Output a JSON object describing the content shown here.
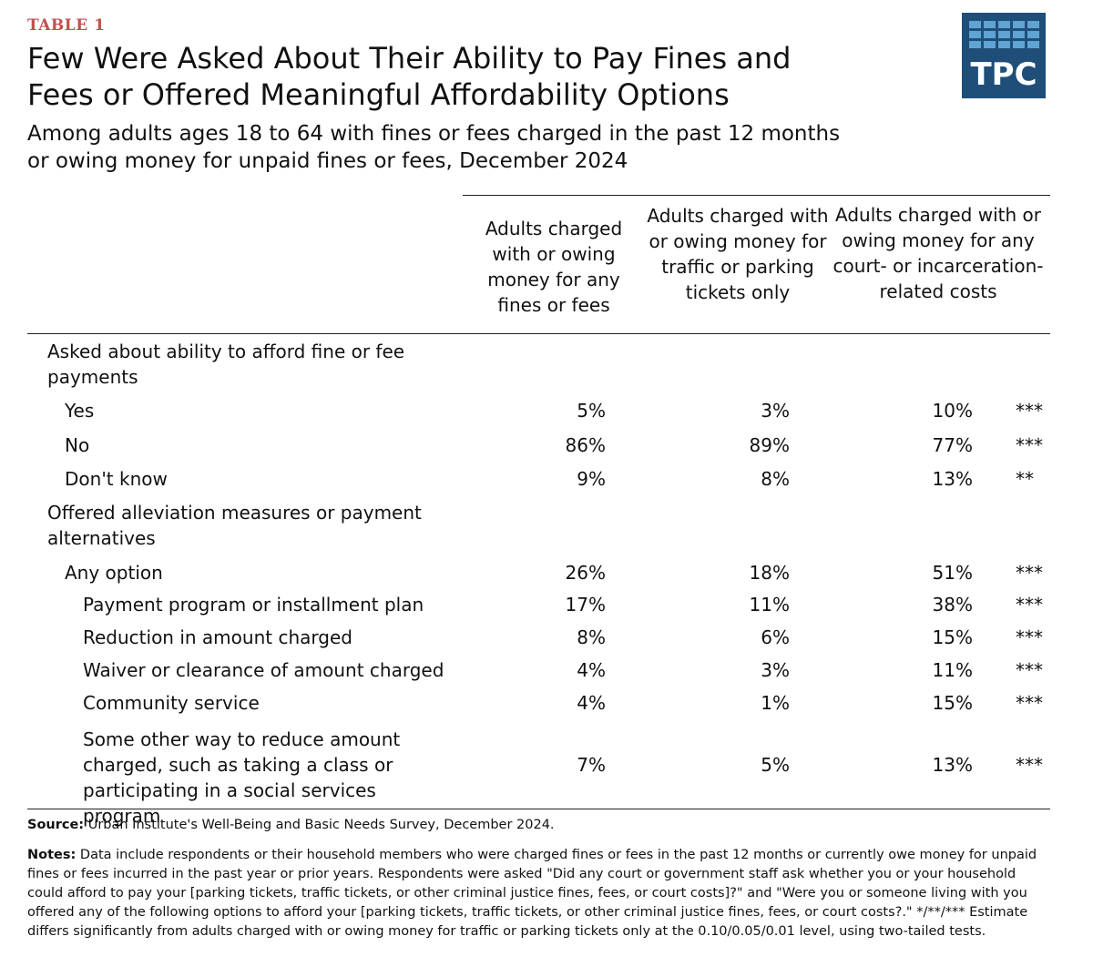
{
  "header": {
    "kicker": "TABLE 1",
    "title": "Few Were Asked About Their Ability to Pay Fines and Fees or Offered Meaningful Affordability Options",
    "subtitle": "Among adults ages 18 to 64 with fines or fees charged in the past 12 months or owing money for unpaid fines or fees, December 2024",
    "logo_text": "TPC",
    "kicker_color": "#c0504d",
    "logo_color": "#1f4e79"
  },
  "table": {
    "columns": [
      "Adults charged with or owing money for any fines or fees",
      "Adults charged with or owing money for traffic or parking tickets only",
      "Adults charged with or owing money for any court- or incarceration-related costs"
    ],
    "sections": [
      {
        "label": "Asked about ability to afford fine or fee payments",
        "rows": [
          {
            "label": "Yes",
            "values": [
              "5%",
              "3%",
              "10%"
            ],
            "sig": "***"
          },
          {
            "label": "No",
            "values": [
              "86%",
              "89%",
              "77%"
            ],
            "sig": "***"
          },
          {
            "label": "Don't know",
            "values": [
              "9%",
              "8%",
              "13%"
            ],
            "sig": "**"
          }
        ]
      },
      {
        "label": "Offered alleviation measures or payment alternatives",
        "rows": [
          {
            "label": "Any option",
            "values": [
              "26%",
              "18%",
              "51%"
            ],
            "sig": "***"
          },
          {
            "label": "Payment program or installment plan",
            "values": [
              "17%",
              "11%",
              "38%"
            ],
            "sig": "***"
          },
          {
            "label": "Reduction in amount charged",
            "values": [
              "8%",
              "6%",
              "15%"
            ],
            "sig": "***"
          },
          {
            "label": "Waiver or clearance of amount charged",
            "values": [
              "4%",
              "3%",
              "11%"
            ],
            "sig": "***"
          },
          {
            "label": "Community service",
            "values": [
              "4%",
              "1%",
              "15%"
            ],
            "sig": "***"
          },
          {
            "label": "Some other way to reduce amount charged, such as taking a class or participating in a social services program",
            "values": [
              "7%",
              "5%",
              "13%"
            ],
            "sig": "***"
          }
        ]
      }
    ]
  },
  "footer": {
    "source_label": "Source:",
    "source_text": "Urban Institute's Well-Being and Basic Needs Survey, December 2024.",
    "notes_label": "Notes:",
    "notes_text": "Data include respondents or their household members who were charged fines or fees in the past 12 months or currently owe money for unpaid fines or fees incurred in the past year or prior years. Respondents were asked \"Did any court or government staff ask whether you or your household could afford to pay your [parking tickets, traffic tickets, or other criminal justice fines, fees, or court costs]?\" and \"Were you or someone living with you offered any of the following options to afford your [parking tickets, traffic tickets, or other criminal justice fines, fees, or court costs?.\" */**/*** Estimate differs significantly from adults charged with or owing money for traffic or parking tickets only at the 0.10/0.05/0.01 level, using two-tailed tests."
  }
}
